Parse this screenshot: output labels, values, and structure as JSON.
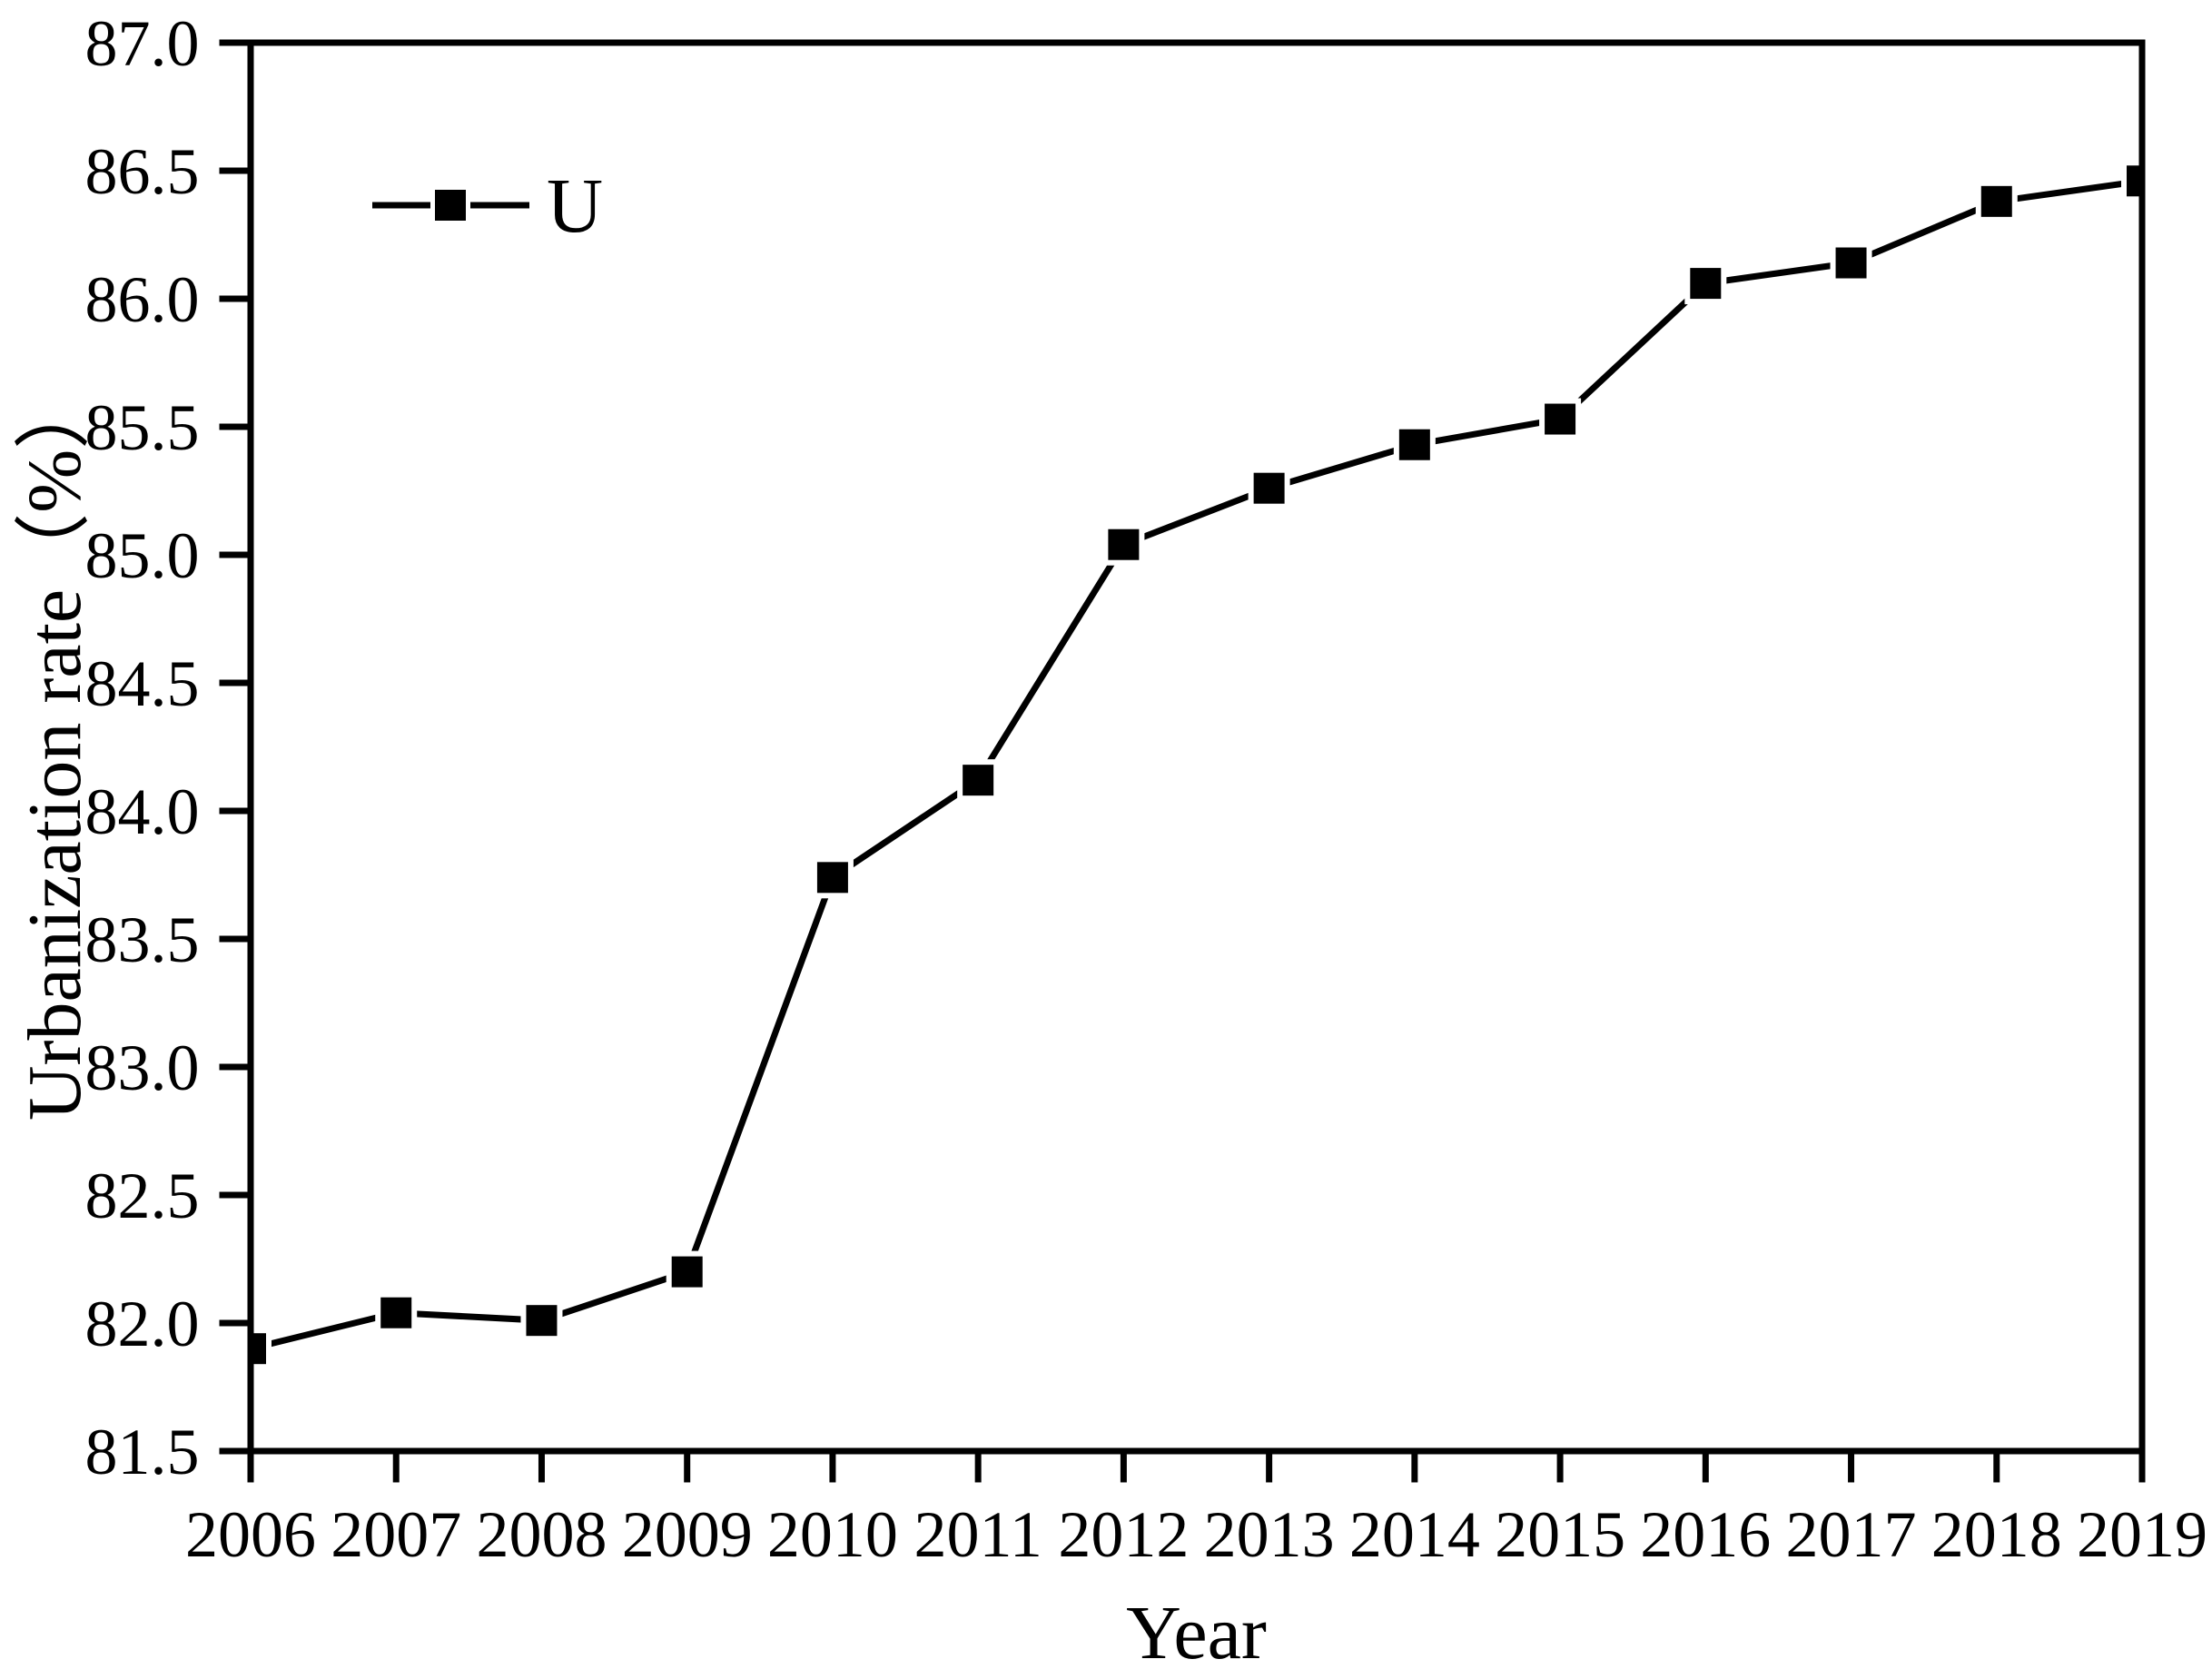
{
  "page": {
    "background": "#ffffff"
  },
  "chart_data": {
    "type": "line",
    "xlabel": "Year",
    "ylabel": "Urbanization rate（%）",
    "x": [
      2006,
      2007,
      2008,
      2009,
      2010,
      2011,
      2012,
      2013,
      2014,
      2015,
      2016,
      2017,
      2018,
      2019
    ],
    "xticks": [
      "2006",
      "2007",
      "2008",
      "2009",
      "2010",
      "2011",
      "2012",
      "2013",
      "2014",
      "2015",
      "2016",
      "2017",
      "2018",
      "2019"
    ],
    "series": [
      {
        "name": "U",
        "marker": "filled-square",
        "color": "#000000",
        "values": [
          81.9,
          82.04,
          82.01,
          82.2,
          83.74,
          84.12,
          85.04,
          85.26,
          85.43,
          85.53,
          86.06,
          86.14,
          86.38,
          86.46
        ]
      }
    ],
    "ylim": [
      81.5,
      87.0
    ],
    "ytick_step": 0.5,
    "yticks": [
      "81.5",
      "82.0",
      "82.5",
      "83.0",
      "83.5",
      "84.0",
      "84.5",
      "85.0",
      "85.5",
      "86.0",
      "86.5",
      "87.0"
    ],
    "grid": false,
    "frame": "full-box",
    "tick_direction": "out",
    "legend": {
      "position": "upper-left",
      "entries": [
        "U"
      ]
    },
    "colors": {
      "line": "#000000",
      "marker": "#000000",
      "marker_halo": "#ffffff",
      "axis": "#000000",
      "text": "#000000",
      "background": "#ffffff"
    }
  }
}
